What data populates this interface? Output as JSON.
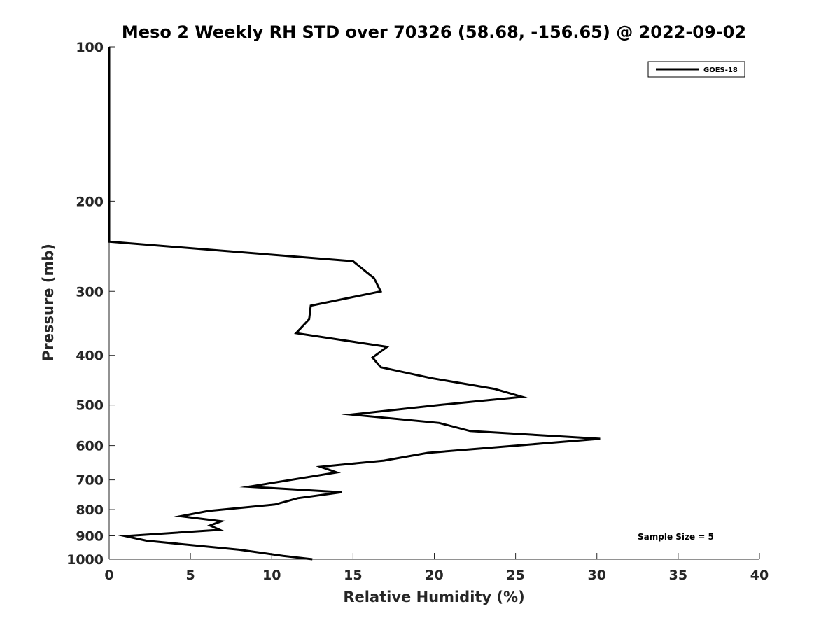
{
  "chart_data": {
    "type": "line",
    "title": "Meso 2 Weekly RH STD over 70326 (58.68, -156.65) @ 2022-09-02",
    "xlabel": "Relative Humidity (%)",
    "ylabel": "Pressure (mb)",
    "xlim": [
      0,
      40
    ],
    "ylim": [
      100,
      1000
    ],
    "y_scale": "log",
    "y_reversed": true,
    "x_ticks": [
      0,
      5,
      10,
      15,
      20,
      25,
      30,
      35,
      40
    ],
    "y_ticks": [
      100,
      200,
      300,
      400,
      500,
      600,
      700,
      800,
      900,
      1000
    ],
    "grid": false,
    "legend_position": "top-right",
    "series": [
      {
        "name": "GOES-18",
        "color": "#000000",
        "points": [
          {
            "rh": 0,
            "p": 100
          },
          {
            "rh": 0,
            "p": 150
          },
          {
            "rh": 0,
            "p": 200
          },
          {
            "rh": 0,
            "p": 240
          },
          {
            "rh": 15.0,
            "p": 262
          },
          {
            "rh": 16.3,
            "p": 283
          },
          {
            "rh": 16.7,
            "p": 300
          },
          {
            "rh": 12.4,
            "p": 320
          },
          {
            "rh": 12.3,
            "p": 340
          },
          {
            "rh": 11.5,
            "p": 362
          },
          {
            "rh": 17.1,
            "p": 385
          },
          {
            "rh": 16.2,
            "p": 404
          },
          {
            "rh": 16.7,
            "p": 422
          },
          {
            "rh": 19.8,
            "p": 443
          },
          {
            "rh": 23.7,
            "p": 465
          },
          {
            "rh": 25.4,
            "p": 482
          },
          {
            "rh": 20.3,
            "p": 500
          },
          {
            "rh": 14.9,
            "p": 522
          },
          {
            "rh": 20.3,
            "p": 542
          },
          {
            "rh": 22.2,
            "p": 562
          },
          {
            "rh": 30.2,
            "p": 582
          },
          {
            "rh": 19.6,
            "p": 620
          },
          {
            "rh": 16.9,
            "p": 642
          },
          {
            "rh": 13.0,
            "p": 660
          },
          {
            "rh": 14.0,
            "p": 677
          },
          {
            "rh": 8.6,
            "p": 722
          },
          {
            "rh": 14.3,
            "p": 740
          },
          {
            "rh": 11.6,
            "p": 760
          },
          {
            "rh": 10.2,
            "p": 782
          },
          {
            "rh": 6.1,
            "p": 805
          },
          {
            "rh": 4.4,
            "p": 824
          },
          {
            "rh": 6.9,
            "p": 843
          },
          {
            "rh": 6.2,
            "p": 859
          },
          {
            "rh": 6.8,
            "p": 876
          },
          {
            "rh": 1.0,
            "p": 901
          },
          {
            "rh": 2.3,
            "p": 920
          },
          {
            "rh": 8.0,
            "p": 958
          },
          {
            "rh": 10.7,
            "p": 985
          },
          {
            "rh": 12.5,
            "p": 1000
          }
        ]
      }
    ],
    "annotations": [
      "Sample Size = 5"
    ]
  }
}
